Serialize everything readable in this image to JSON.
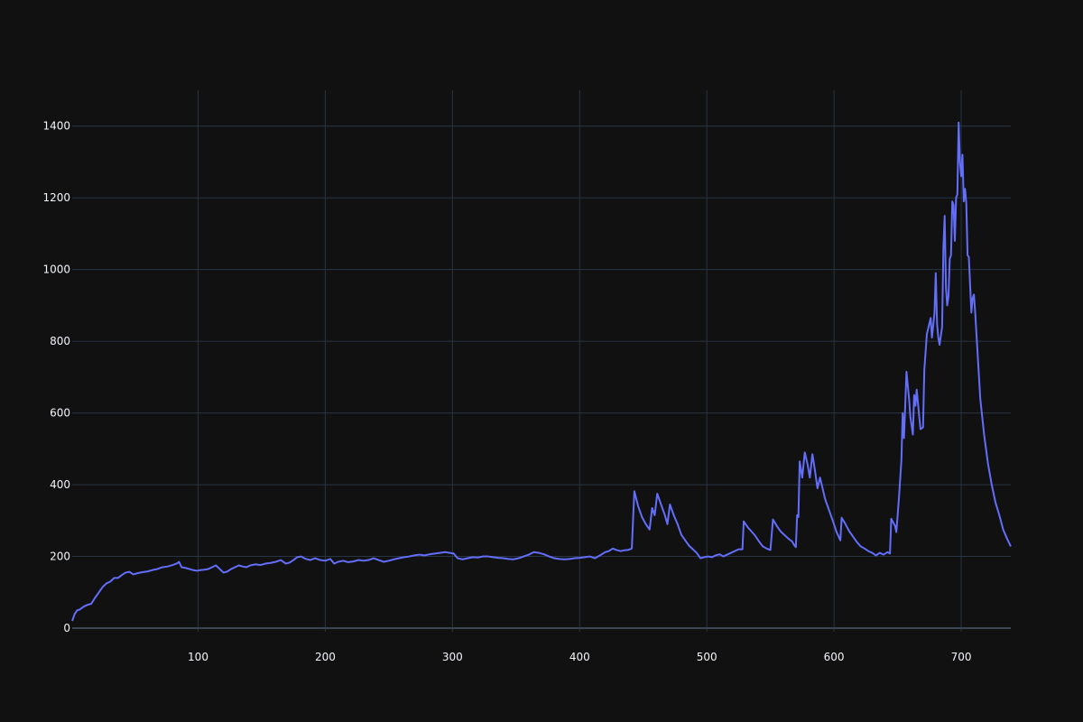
{
  "colors": {
    "background": "#111111",
    "grid": "#283442",
    "zeroline": "#3a4654",
    "series": "#636efa",
    "tick_text": "#f2f5fa"
  },
  "chart_data": {
    "type": "line",
    "title": "",
    "xlabel": "",
    "ylabel": "",
    "xlim": [
      1,
      739
    ],
    "ylim": [
      -10,
      1500
    ],
    "xticks": [
      100,
      200,
      300,
      400,
      500,
      600,
      700
    ],
    "yticks": [
      0,
      200,
      400,
      600,
      800,
      1000,
      1200,
      1400
    ],
    "grid": true,
    "legend": "none",
    "series": [
      {
        "color": "#636efa",
        "points": [
          [
            1,
            20
          ],
          [
            3,
            40
          ],
          [
            5,
            50
          ],
          [
            7,
            52
          ],
          [
            10,
            60
          ],
          [
            13,
            65
          ],
          [
            16,
            68
          ],
          [
            19,
            85
          ],
          [
            22,
            100
          ],
          [
            25,
            115
          ],
          [
            28,
            125
          ],
          [
            31,
            130
          ],
          [
            34,
            140
          ],
          [
            37,
            140
          ],
          [
            40,
            148
          ],
          [
            43,
            155
          ],
          [
            46,
            157
          ],
          [
            49,
            150
          ],
          [
            52,
            153
          ],
          [
            56,
            156
          ],
          [
            60,
            158
          ],
          [
            64,
            162
          ],
          [
            68,
            165
          ],
          [
            72,
            170
          ],
          [
            76,
            172
          ],
          [
            80,
            176
          ],
          [
            83,
            180
          ],
          [
            85,
            185
          ],
          [
            87,
            170
          ],
          [
            90,
            168
          ],
          [
            93,
            165
          ],
          [
            96,
            162
          ],
          [
            99,
            160
          ],
          [
            102,
            162
          ],
          [
            105,
            163
          ],
          [
            108,
            165
          ],
          [
            111,
            170
          ],
          [
            114,
            175
          ],
          [
            117,
            165
          ],
          [
            120,
            155
          ],
          [
            123,
            158
          ],
          [
            126,
            165
          ],
          [
            129,
            170
          ],
          [
            132,
            175
          ],
          [
            135,
            172
          ],
          [
            138,
            170
          ],
          [
            141,
            175
          ],
          [
            145,
            178
          ],
          [
            149,
            176
          ],
          [
            153,
            180
          ],
          [
            157,
            182
          ],
          [
            161,
            185
          ],
          [
            165,
            190
          ],
          [
            169,
            180
          ],
          [
            172,
            183
          ],
          [
            175,
            190
          ],
          [
            178,
            198
          ],
          [
            181,
            200
          ],
          [
            184,
            194
          ],
          [
            188,
            190
          ],
          [
            192,
            195
          ],
          [
            196,
            190
          ],
          [
            200,
            188
          ],
          [
            204,
            193
          ],
          [
            207,
            180
          ],
          [
            210,
            185
          ],
          [
            214,
            188
          ],
          [
            218,
            184
          ],
          [
            222,
            186
          ],
          [
            226,
            190
          ],
          [
            230,
            188
          ],
          [
            234,
            190
          ],
          [
            238,
            195
          ],
          [
            242,
            190
          ],
          [
            246,
            185
          ],
          [
            250,
            188
          ],
          [
            254,
            192
          ],
          [
            258,
            195
          ],
          [
            262,
            198
          ],
          [
            266,
            200
          ],
          [
            270,
            203
          ],
          [
            274,
            205
          ],
          [
            278,
            203
          ],
          [
            282,
            206
          ],
          [
            286,
            208
          ],
          [
            290,
            210
          ],
          [
            294,
            212
          ],
          [
            298,
            210
          ],
          [
            301,
            208
          ],
          [
            304,
            195
          ],
          [
            308,
            192
          ],
          [
            312,
            195
          ],
          [
            316,
            198
          ],
          [
            320,
            197
          ],
          [
            324,
            200
          ],
          [
            328,
            200
          ],
          [
            332,
            198
          ],
          [
            336,
            196
          ],
          [
            340,
            195
          ],
          [
            344,
            193
          ],
          [
            348,
            192
          ],
          [
            352,
            195
          ],
          [
            356,
            200
          ],
          [
            360,
            205
          ],
          [
            364,
            212
          ],
          [
            368,
            210
          ],
          [
            372,
            206
          ],
          [
            376,
            200
          ],
          [
            380,
            195
          ],
          [
            384,
            193
          ],
          [
            388,
            192
          ],
          [
            392,
            193
          ],
          [
            396,
            195
          ],
          [
            400,
            196
          ],
          [
            404,
            198
          ],
          [
            408,
            200
          ],
          [
            412,
            195
          ],
          [
            416,
            203
          ],
          [
            420,
            212
          ],
          [
            423,
            215
          ],
          [
            426,
            222
          ],
          [
            429,
            218
          ],
          [
            432,
            215
          ],
          [
            435,
            217
          ],
          [
            438,
            218
          ],
          [
            441,
            222
          ],
          [
            443,
            382
          ],
          [
            446,
            340
          ],
          [
            449,
            310
          ],
          [
            452,
            290
          ],
          [
            455,
            275
          ],
          [
            457,
            335
          ],
          [
            459,
            315
          ],
          [
            461,
            375
          ],
          [
            464,
            345
          ],
          [
            467,
            315
          ],
          [
            469,
            290
          ],
          [
            471,
            345
          ],
          [
            474,
            315
          ],
          [
            477,
            290
          ],
          [
            480,
            260
          ],
          [
            483,
            245
          ],
          [
            486,
            230
          ],
          [
            489,
            220
          ],
          [
            492,
            210
          ],
          [
            495,
            195
          ],
          [
            498,
            198
          ],
          [
            501,
            200
          ],
          [
            504,
            198
          ],
          [
            507,
            203
          ],
          [
            510,
            206
          ],
          [
            513,
            200
          ],
          [
            516,
            205
          ],
          [
            519,
            210
          ],
          [
            522,
            215
          ],
          [
            525,
            220
          ],
          [
            528,
            220
          ],
          [
            529,
            298
          ],
          [
            532,
            282
          ],
          [
            535,
            270
          ],
          [
            538,
            258
          ],
          [
            541,
            242
          ],
          [
            544,
            228
          ],
          [
            547,
            222
          ],
          [
            550,
            218
          ],
          [
            552,
            303
          ],
          [
            555,
            285
          ],
          [
            558,
            270
          ],
          [
            561,
            260
          ],
          [
            564,
            250
          ],
          [
            567,
            242
          ],
          [
            569,
            230
          ],
          [
            570,
            226
          ],
          [
            571,
            315
          ],
          [
            572,
            310
          ],
          [
            573,
            465
          ],
          [
            575,
            420
          ],
          [
            577,
            490
          ],
          [
            579,
            460
          ],
          [
            581,
            420
          ],
          [
            583,
            485
          ],
          [
            585,
            440
          ],
          [
            587,
            390
          ],
          [
            589,
            420
          ],
          [
            591,
            390
          ],
          [
            593,
            360
          ],
          [
            596,
            330
          ],
          [
            599,
            300
          ],
          [
            602,
            268
          ],
          [
            605,
            245
          ],
          [
            606,
            308
          ],
          [
            609,
            290
          ],
          [
            612,
            270
          ],
          [
            615,
            255
          ],
          [
            618,
            240
          ],
          [
            621,
            228
          ],
          [
            624,
            222
          ],
          [
            627,
            215
          ],
          [
            630,
            210
          ],
          [
            633,
            203
          ],
          [
            636,
            210
          ],
          [
            639,
            205
          ],
          [
            642,
            212
          ],
          [
            644,
            208
          ],
          [
            645,
            305
          ],
          [
            648,
            285
          ],
          [
            649,
            268
          ],
          [
            651,
            360
          ],
          [
            653,
            470
          ],
          [
            654,
            600
          ],
          [
            655,
            530
          ],
          [
            657,
            715
          ],
          [
            659,
            640
          ],
          [
            660,
            590
          ],
          [
            662,
            540
          ],
          [
            663,
            650
          ],
          [
            664,
            620
          ],
          [
            665,
            665
          ],
          [
            667,
            590
          ],
          [
            668,
            555
          ],
          [
            670,
            560
          ],
          [
            671,
            720
          ],
          [
            673,
            820
          ],
          [
            675,
            850
          ],
          [
            676,
            865
          ],
          [
            677,
            810
          ],
          [
            679,
            880
          ],
          [
            680,
            990
          ],
          [
            681,
            850
          ],
          [
            682,
            810
          ],
          [
            683,
            790
          ],
          [
            685,
            840
          ],
          [
            686,
            1060
          ],
          [
            687,
            1150
          ],
          [
            688,
            950
          ],
          [
            689,
            900
          ],
          [
            690,
            925
          ],
          [
            691,
            1030
          ],
          [
            692,
            1040
          ],
          [
            693,
            1190
          ],
          [
            694,
            1180
          ],
          [
            695,
            1080
          ],
          [
            696,
            1200
          ],
          [
            697,
            1210
          ],
          [
            698,
            1410
          ],
          [
            699,
            1300
          ],
          [
            700,
            1260
          ],
          [
            701,
            1320
          ],
          [
            702,
            1190
          ],
          [
            703,
            1225
          ],
          [
            704,
            1185
          ],
          [
            705,
            1040
          ],
          [
            706,
            1035
          ],
          [
            708,
            880
          ],
          [
            709,
            920
          ],
          [
            710,
            930
          ],
          [
            711,
            880
          ],
          [
            713,
            760
          ],
          [
            715,
            640
          ],
          [
            718,
            540
          ],
          [
            721,
            460
          ],
          [
            724,
            400
          ],
          [
            727,
            350
          ],
          [
            730,
            315
          ],
          [
            733,
            275
          ],
          [
            736,
            250
          ],
          [
            739,
            228
          ]
        ]
      }
    ]
  }
}
